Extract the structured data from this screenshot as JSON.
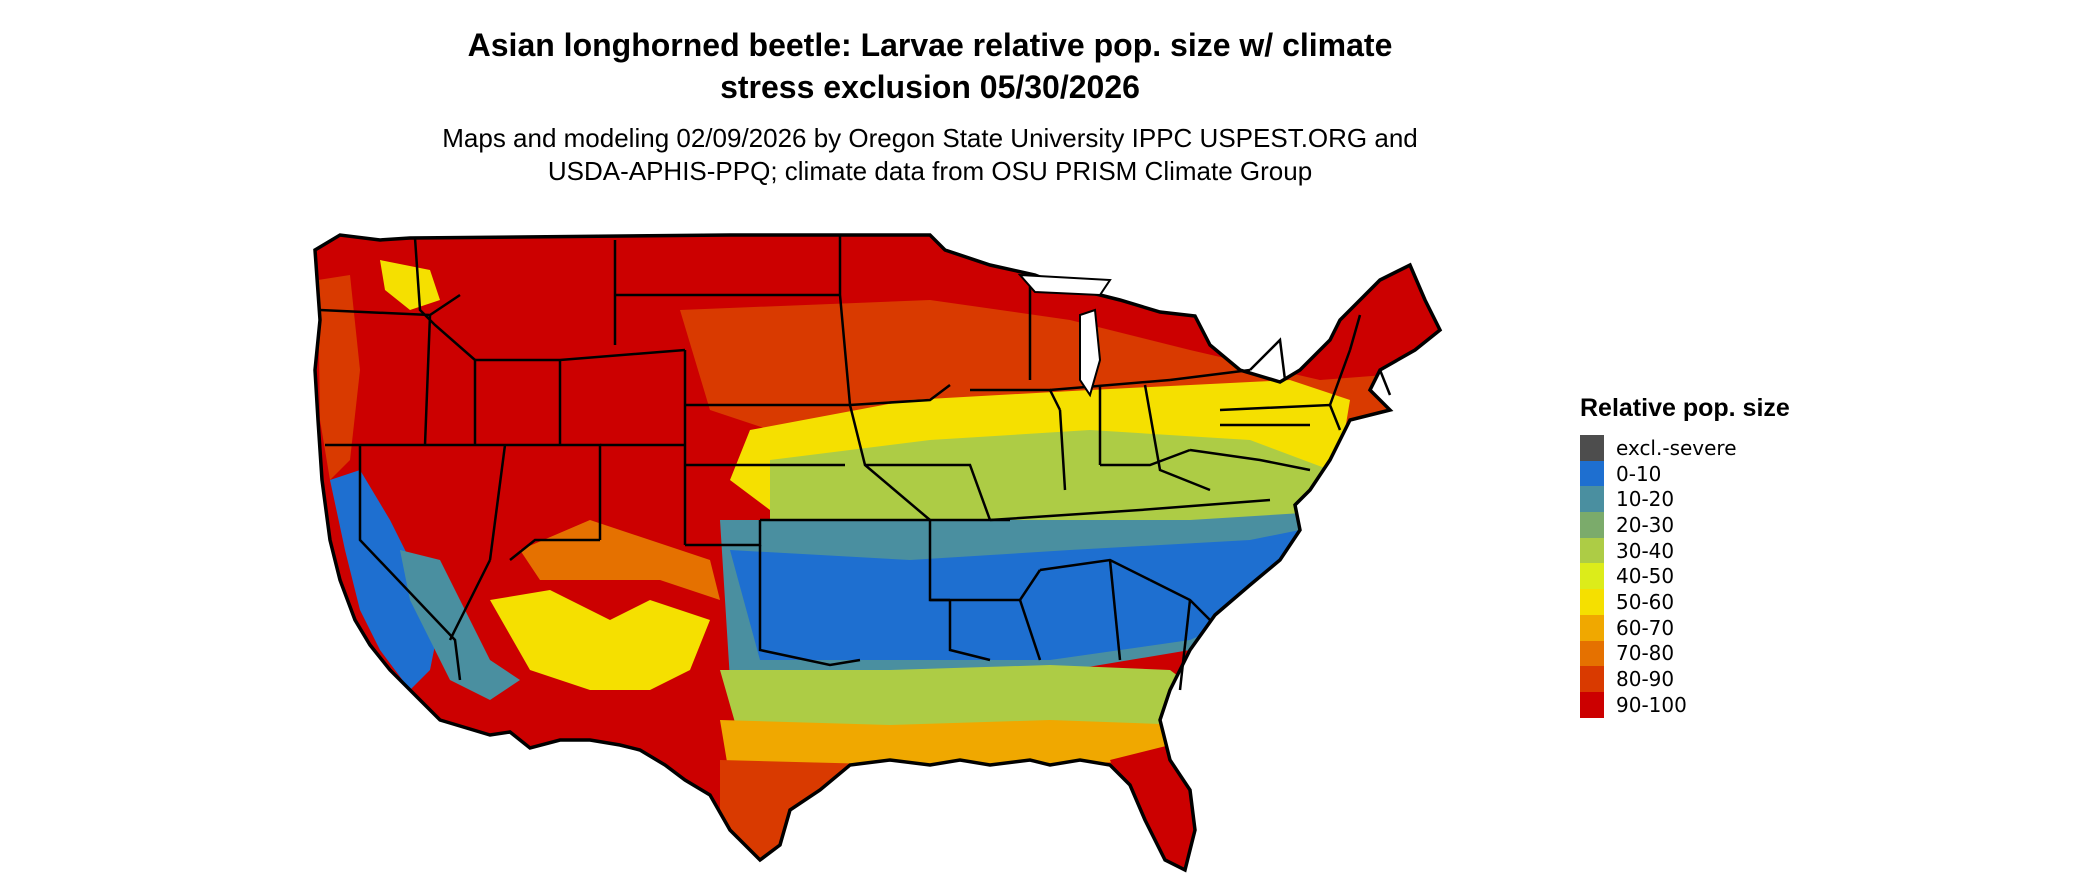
{
  "title": {
    "line1": "Asian longhorned beetle: Larvae relative pop. size w/ climate",
    "line2": "stress exclusion 05/30/2026"
  },
  "subtitle": {
    "line1": "Maps and modeling 02/09/2026 by Oregon State University IPPC USPEST.ORG and",
    "line2": "USDA-APHIS-PPQ; climate data from OSU PRISM Climate Group"
  },
  "legend": {
    "title": "Relative pop. size",
    "items": [
      {
        "label": "excl.-severe",
        "color": "#4d4d4d"
      },
      {
        "label": "0-10",
        "color": "#1e6fd0"
      },
      {
        "label": "10-20",
        "color": "#4a8fa0"
      },
      {
        "label": "20-30",
        "color": "#7bab6b"
      },
      {
        "label": "30-40",
        "color": "#adcc45"
      },
      {
        "label": "40-50",
        "color": "#dcec1a"
      },
      {
        "label": "50-60",
        "color": "#f5e000"
      },
      {
        "label": "60-70",
        "color": "#f0a800"
      },
      {
        "label": "70-80",
        "color": "#e57100"
      },
      {
        "label": "80-90",
        "color": "#d93a00"
      },
      {
        "label": "90-100",
        "color": "#cc0000"
      }
    ]
  },
  "map": {
    "outline_color": "#000000",
    "regions": [
      {
        "name": "northwest-high",
        "class": "90-100"
      },
      {
        "name": "north-central",
        "class": "80-90"
      },
      {
        "name": "central-band",
        "class": "50-60"
      },
      {
        "name": "midwest-band",
        "class": "30-40"
      },
      {
        "name": "upper-south",
        "class": "10-20"
      },
      {
        "name": "deep-south",
        "class": "0-10"
      },
      {
        "name": "gulf-coast",
        "class": "60-70"
      },
      {
        "name": "florida",
        "class": "90-100"
      },
      {
        "name": "california-valley",
        "class": "0-10"
      }
    ]
  }
}
